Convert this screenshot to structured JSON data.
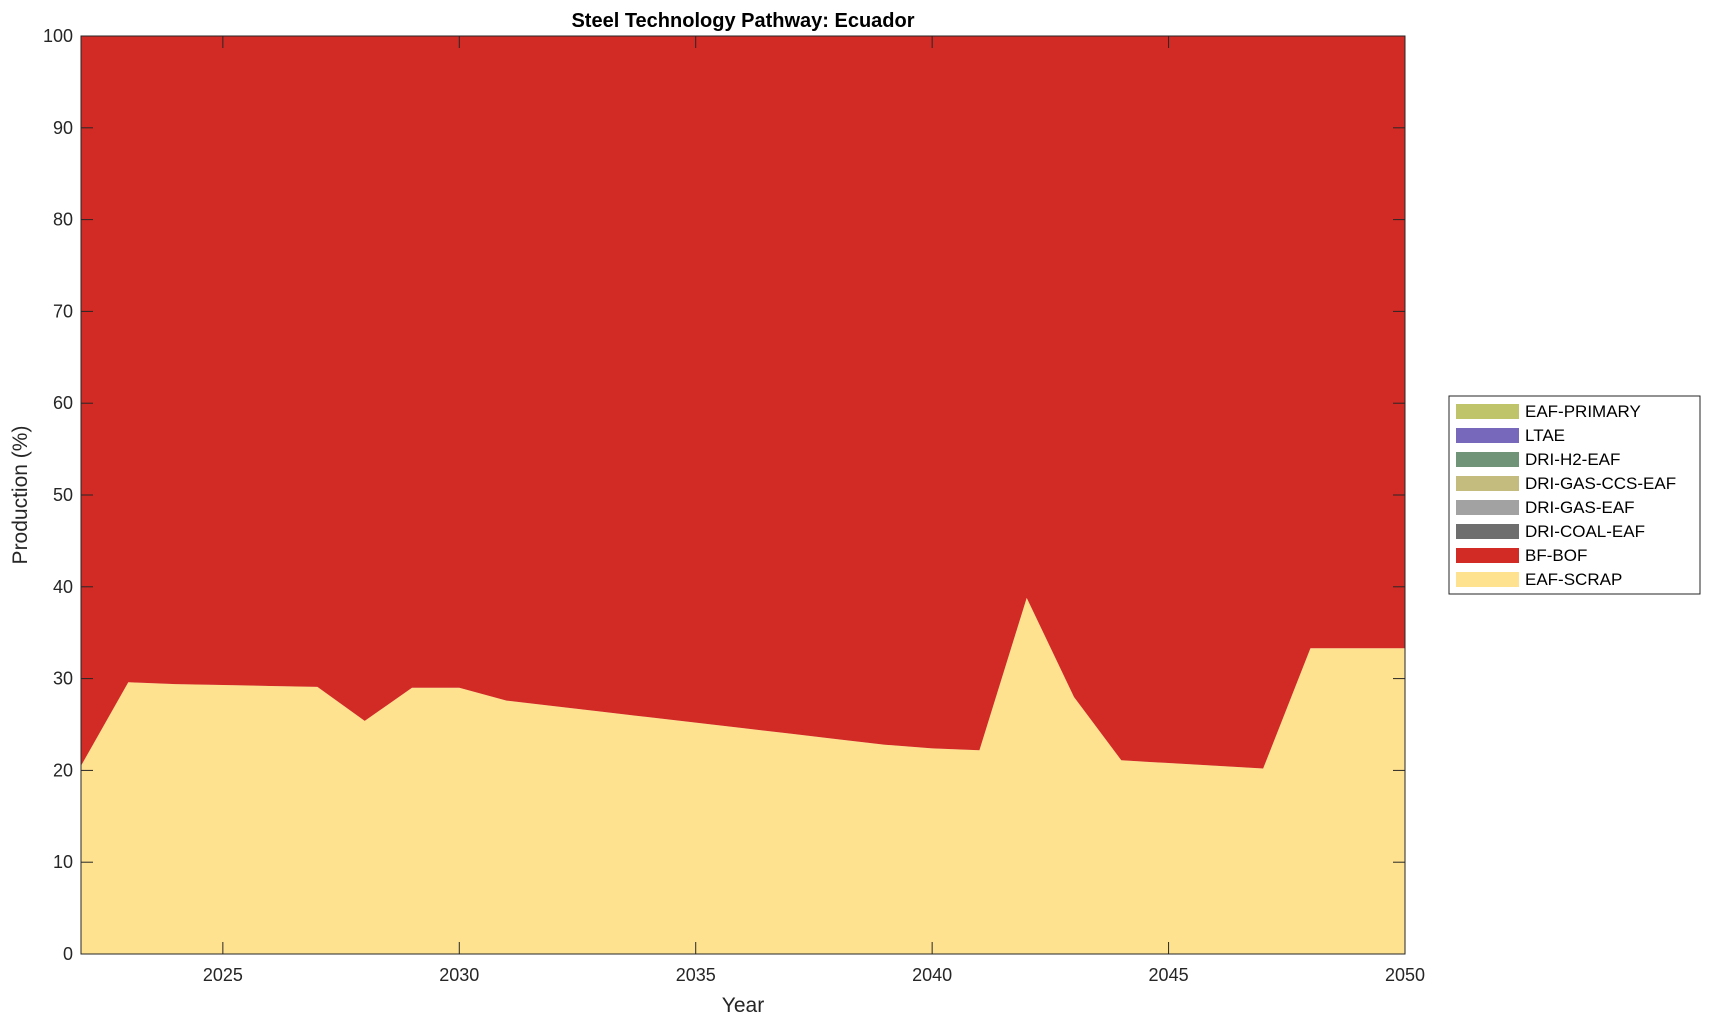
{
  "chart_data": {
    "type": "area",
    "stacked": true,
    "title": "Steel Technology Pathway: Ecuador",
    "xlabel": "Year",
    "ylabel": "Production (%)",
    "xlim": [
      2022,
      2050
    ],
    "ylim": [
      0,
      100
    ],
    "xticks": [
      2025,
      2030,
      2035,
      2040,
      2045,
      2050
    ],
    "yticks": [
      0,
      10,
      20,
      30,
      40,
      50,
      60,
      70,
      80,
      90,
      100
    ],
    "grid": false,
    "legend_position": "right",
    "x": [
      2022,
      2023,
      2024,
      2025,
      2026,
      2027,
      2028,
      2029,
      2030,
      2031,
      2032,
      2033,
      2034,
      2035,
      2036,
      2037,
      2038,
      2039,
      2040,
      2041,
      2042,
      2043,
      2044,
      2045,
      2046,
      2047,
      2048,
      2049,
      2050
    ],
    "series": [
      {
        "name": "EAF-SCRAP",
        "color": "#FFE290",
        "values": [
          20.5,
          29.6,
          29.4,
          29.3,
          29.2,
          29.1,
          25.4,
          29.0,
          29.0,
          27.6,
          27.0,
          26.4,
          25.8,
          25.2,
          24.6,
          24.0,
          23.4,
          22.8,
          22.4,
          22.2,
          38.8,
          28.0,
          21.1,
          20.8,
          20.5,
          20.2,
          33.3,
          33.3,
          33.3
        ]
      },
      {
        "name": "BF-BOF",
        "color": "#D22B25",
        "values": [
          79.5,
          70.4,
          70.6,
          70.7,
          70.8,
          70.9,
          74.6,
          71.0,
          71.0,
          72.4,
          73.0,
          73.6,
          74.2,
          74.8,
          75.4,
          76.0,
          76.6,
          77.2,
          77.6,
          77.8,
          61.2,
          72.0,
          78.9,
          79.2,
          79.5,
          79.8,
          66.7,
          66.7,
          66.7
        ]
      },
      {
        "name": "DRI-COAL-EAF",
        "color": "#6E6E6E",
        "values": [
          0,
          0,
          0,
          0,
          0,
          0,
          0,
          0,
          0,
          0,
          0,
          0,
          0,
          0,
          0,
          0,
          0,
          0,
          0,
          0,
          0,
          0,
          0,
          0,
          0,
          0,
          0,
          0,
          0
        ]
      },
      {
        "name": "DRI-GAS-EAF",
        "color": "#A2A2A2",
        "values": [
          0,
          0,
          0,
          0,
          0,
          0,
          0,
          0,
          0,
          0,
          0,
          0,
          0,
          0,
          0,
          0,
          0,
          0,
          0,
          0,
          0,
          0,
          0,
          0,
          0,
          0,
          0,
          0,
          0
        ]
      },
      {
        "name": "DRI-GAS-CCS-EAF",
        "color": "#C4BC7E",
        "values": [
          0,
          0,
          0,
          0,
          0,
          0,
          0,
          0,
          0,
          0,
          0,
          0,
          0,
          0,
          0,
          0,
          0,
          0,
          0,
          0,
          0,
          0,
          0,
          0,
          0,
          0,
          0,
          0,
          0
        ]
      },
      {
        "name": "DRI-H2-EAF",
        "color": "#6F9478",
        "values": [
          0,
          0,
          0,
          0,
          0,
          0,
          0,
          0,
          0,
          0,
          0,
          0,
          0,
          0,
          0,
          0,
          0,
          0,
          0,
          0,
          0,
          0,
          0,
          0,
          0,
          0,
          0,
          0,
          0
        ]
      },
      {
        "name": "LTAE",
        "color": "#7768BC",
        "values": [
          0,
          0,
          0,
          0,
          0,
          0,
          0,
          0,
          0,
          0,
          0,
          0,
          0,
          0,
          0,
          0,
          0,
          0,
          0,
          0,
          0,
          0,
          0,
          0,
          0,
          0,
          0,
          0,
          0
        ]
      },
      {
        "name": "EAF-PRIMARY",
        "color": "#BFC46B",
        "values": [
          0,
          0,
          0,
          0,
          0,
          0,
          0,
          0,
          0,
          0,
          0,
          0,
          0,
          0,
          0,
          0,
          0,
          0,
          0,
          0,
          0,
          0,
          0,
          0,
          0,
          0,
          0,
          0,
          0
        ]
      }
    ],
    "legend_order": [
      "EAF-PRIMARY",
      "LTAE",
      "DRI-H2-EAF",
      "DRI-GAS-CCS-EAF",
      "DRI-GAS-EAF",
      "DRI-COAL-EAF",
      "BF-BOF",
      "EAF-SCRAP"
    ]
  }
}
